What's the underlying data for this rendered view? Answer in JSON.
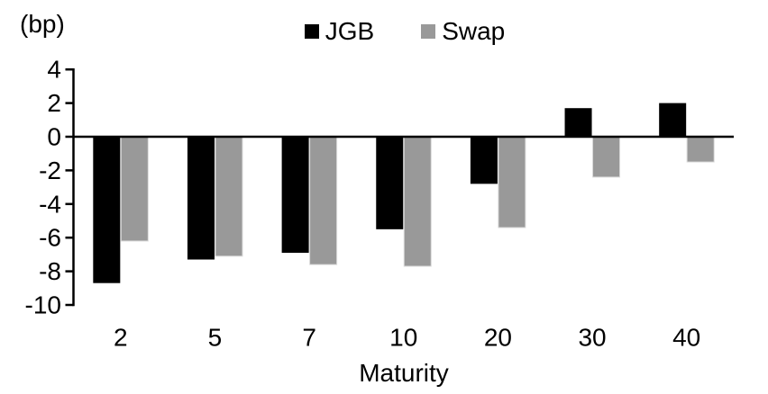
{
  "chart_data": {
    "type": "bar",
    "categories": [
      "2",
      "5",
      "7",
      "10",
      "20",
      "30",
      "40"
    ],
    "series": [
      {
        "name": "JGB",
        "color": "#000000",
        "values": [
          -8.7,
          -7.3,
          -6.9,
          -5.5,
          -2.8,
          1.7,
          2.0
        ]
      },
      {
        "name": "Swap",
        "color": "#999999",
        "values": [
          -6.2,
          -7.1,
          -7.6,
          -7.7,
          -5.4,
          -2.4,
          -1.5
        ]
      }
    ],
    "title": "",
    "xlabel": "Maturity",
    "ylabel": "(bp)",
    "ylim": [
      -10,
      4
    ],
    "yticks": [
      4,
      2,
      0,
      -2,
      -4,
      -6,
      -8,
      -10
    ],
    "legend_position": "top",
    "grid": false,
    "axis_color": "#000000",
    "swap_bar_edge_color": "#d9d9d9"
  }
}
